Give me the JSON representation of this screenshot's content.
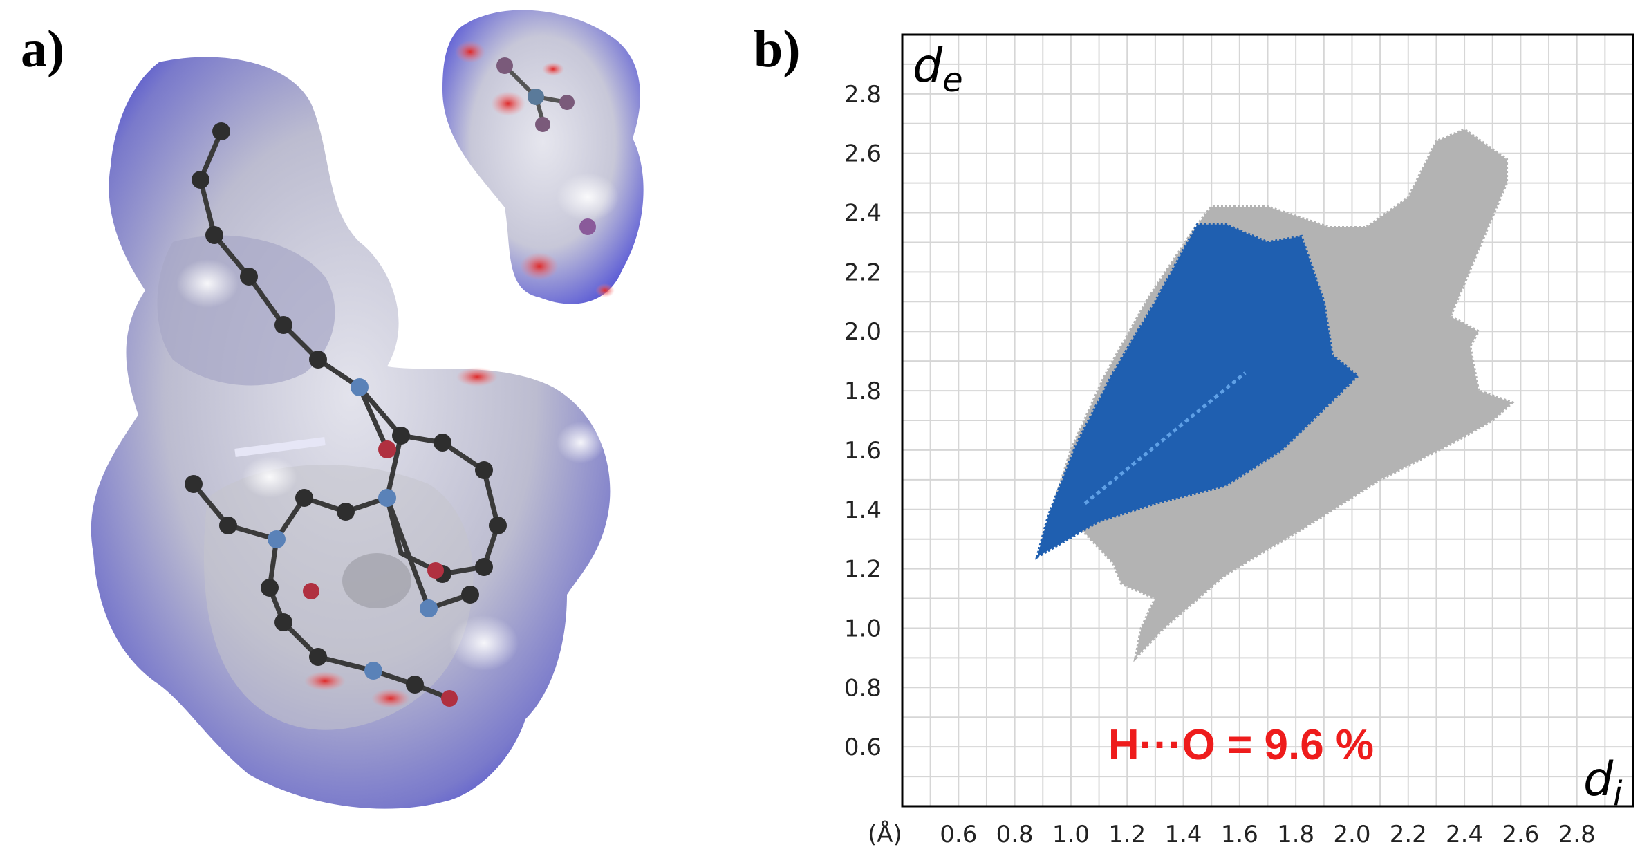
{
  "panels": {
    "a_label": "a)",
    "b_label": "b)"
  },
  "chart_data": {
    "type": "scatter",
    "title": "",
    "xlabel": "d_i",
    "ylabel": "d_e",
    "x_axis_symbol": "d",
    "x_axis_subscript": "i",
    "y_axis_symbol": "d",
    "y_axis_subscript": "e",
    "unit_label": "(Å)",
    "xlim": [
      0.4,
      3.0
    ],
    "ylim": [
      0.4,
      3.0
    ],
    "x_ticks": [
      "0.6",
      "0.8",
      "1.0",
      "1.2",
      "1.4",
      "1.6",
      "1.8",
      "2.0",
      "2.2",
      "2.4",
      "2.6",
      "2.8"
    ],
    "y_ticks": [
      "0.6",
      "0.8",
      "1.0",
      "1.2",
      "1.4",
      "1.6",
      "1.8",
      "2.0",
      "2.2",
      "2.4",
      "2.6",
      "2.8"
    ],
    "grid": true,
    "annotation": "H···O = 9.6 %",
    "series": [
      {
        "role": "all contacts",
        "color": "#b3b3b3",
        "outline": [
          [
            1.23,
            0.9
          ],
          [
            1.33,
            1.0
          ],
          [
            1.55,
            1.18
          ],
          [
            1.85,
            1.35
          ],
          [
            2.1,
            1.5
          ],
          [
            2.35,
            1.62
          ],
          [
            2.5,
            1.7
          ],
          [
            2.57,
            1.76
          ],
          [
            2.45,
            1.8
          ],
          [
            2.42,
            1.95
          ],
          [
            2.45,
            2.0
          ],
          [
            2.35,
            2.05
          ],
          [
            2.55,
            2.5
          ],
          [
            2.55,
            2.58
          ],
          [
            2.4,
            2.68
          ],
          [
            2.3,
            2.64
          ],
          [
            2.2,
            2.45
          ],
          [
            2.05,
            2.35
          ],
          [
            1.92,
            2.35
          ],
          [
            1.7,
            2.42
          ],
          [
            1.5,
            2.42
          ],
          [
            1.45,
            2.36
          ],
          [
            1.28,
            2.12
          ],
          [
            1.12,
            1.85
          ],
          [
            1.0,
            1.6
          ],
          [
            0.9,
            1.3
          ],
          [
            1.02,
            1.35
          ],
          [
            1.15,
            1.22
          ],
          [
            1.18,
            1.15
          ],
          [
            1.3,
            1.1
          ],
          [
            1.25,
            1.0
          ]
        ]
      },
      {
        "role": "H···O contacts",
        "color": "#1f5fb0",
        "outline": [
          [
            0.88,
            1.24
          ],
          [
            1.1,
            1.36
          ],
          [
            1.3,
            1.42
          ],
          [
            1.55,
            1.48
          ],
          [
            1.75,
            1.6
          ],
          [
            1.88,
            1.72
          ],
          [
            2.02,
            1.85
          ],
          [
            1.93,
            1.92
          ],
          [
            1.9,
            2.1
          ],
          [
            1.82,
            2.32
          ],
          [
            1.7,
            2.3
          ],
          [
            1.55,
            2.36
          ],
          [
            1.45,
            2.36
          ],
          [
            1.3,
            2.1
          ],
          [
            1.15,
            1.86
          ],
          [
            1.02,
            1.62
          ],
          [
            0.92,
            1.38
          ]
        ]
      }
    ]
  }
}
